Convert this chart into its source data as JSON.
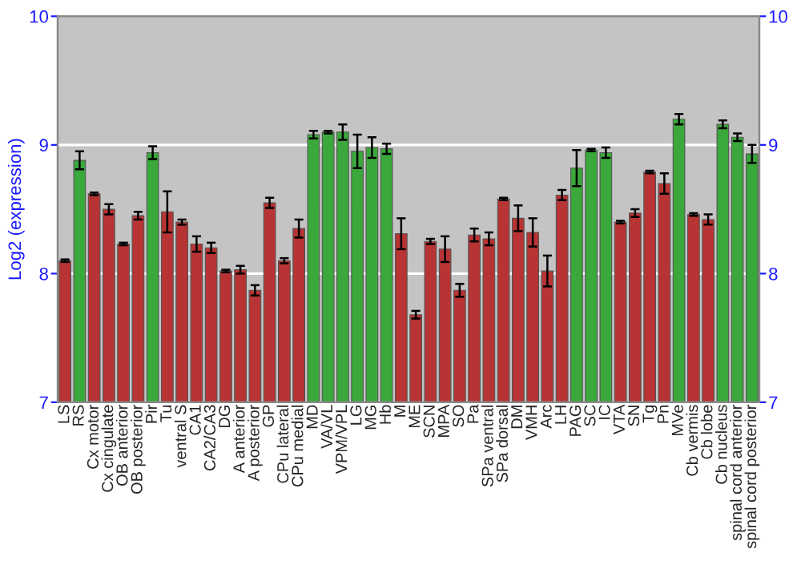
{
  "chart_data": {
    "type": "bar",
    "ylabel": "Log2 (expression)",
    "categories": [
      "LS",
      "RS",
      "Cx motor",
      "Cx cingulate",
      "OB anterior",
      "OB posterior",
      "Pir",
      "Tu",
      "ventral S",
      "CA1",
      "CA2/CA3",
      "DG",
      "A anterior",
      "A posterior",
      "GP",
      "CPu lateral",
      "CPu medial",
      "MD",
      "VA/VL",
      "VPM/VPL",
      "LG",
      "MG",
      "Hb",
      "M",
      "ME",
      "SCN",
      "MPA",
      "SO",
      "Pa",
      "SPa ventral",
      "SPa dorsal",
      "DM",
      "VMH",
      "Arc",
      "LH",
      "PAG",
      "SC",
      "IC",
      "VTA",
      "SN",
      "Tg",
      "Pn",
      "MVe",
      "Cb vermis",
      "Cb lobe",
      "Cb nucleus",
      "spinal cord anterior",
      "spinal cord posterior"
    ],
    "values": [
      8.1,
      8.88,
      8.62,
      8.5,
      8.23,
      8.45,
      8.94,
      8.48,
      8.4,
      8.23,
      8.2,
      8.02,
      8.03,
      7.87,
      8.55,
      8.1,
      8.35,
      9.08,
      9.1,
      9.1,
      8.95,
      8.98,
      8.97,
      8.31,
      7.68,
      8.25,
      8.19,
      7.87,
      8.3,
      8.27,
      8.58,
      8.43,
      8.32,
      8.02,
      8.61,
      8.82,
      8.96,
      8.94,
      8.4,
      8.47,
      8.79,
      8.7,
      9.2,
      8.46,
      8.42,
      9.16,
      9.06,
      8.93
    ],
    "errors": [
      0.01,
      0.07,
      0.01,
      0.04,
      0.01,
      0.03,
      0.05,
      0.16,
      0.02,
      0.06,
      0.04,
      0.01,
      0.03,
      0.04,
      0.04,
      0.02,
      0.07,
      0.03,
      0.01,
      0.06,
      0.13,
      0.08,
      0.04,
      0.12,
      0.03,
      0.02,
      0.1,
      0.05,
      0.05,
      0.05,
      0.01,
      0.1,
      0.11,
      0.12,
      0.04,
      0.14,
      0.01,
      0.04,
      0.01,
      0.03,
      0.01,
      0.08,
      0.04,
      0.01,
      0.04,
      0.03,
      0.03,
      0.07
    ],
    "colors": [
      "#b83333",
      "#3aa83a",
      "#b83333",
      "#b83333",
      "#b83333",
      "#b83333",
      "#3aa83a",
      "#b83333",
      "#b83333",
      "#b83333",
      "#b83333",
      "#b83333",
      "#b83333",
      "#b83333",
      "#b83333",
      "#b83333",
      "#b83333",
      "#3aa83a",
      "#3aa83a",
      "#3aa83a",
      "#3aa83a",
      "#3aa83a",
      "#3aa83a",
      "#b83333",
      "#b83333",
      "#b83333",
      "#b83333",
      "#b83333",
      "#b83333",
      "#b83333",
      "#b83333",
      "#b83333",
      "#b83333",
      "#b83333",
      "#b83333",
      "#3aa83a",
      "#3aa83a",
      "#3aa83a",
      "#b83333",
      "#b83333",
      "#b83333",
      "#b83333",
      "#3aa83a",
      "#b83333",
      "#b83333",
      "#3aa83a",
      "#3aa83a",
      "#3aa83a"
    ],
    "ylim": [
      7,
      10
    ],
    "yticks": [
      7,
      8,
      9,
      10
    ],
    "y2lim": [
      7,
      10
    ],
    "y2ticks": [
      7,
      8,
      9,
      10
    ],
    "grid": "y"
  }
}
